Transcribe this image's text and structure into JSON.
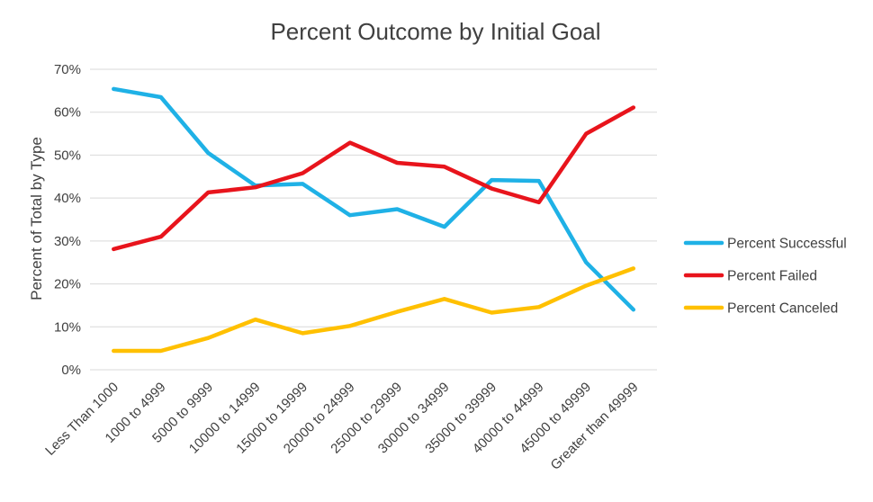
{
  "chart_data": {
    "type": "line",
    "title": "Percent Outcome by Initial Goal",
    "xlabel": "",
    "ylabel": "Percent of Total by Type",
    "ylim": [
      0,
      70
    ],
    "ytick_step": 10,
    "ytick_suffix": "%",
    "grid": true,
    "legend_position": "right",
    "categories": [
      "Less Than 1000",
      "1000 to 4999",
      "5000 to 9999",
      "10000 to 14999",
      "15000 to 19999",
      "20000 to 24999",
      "25000 to 29999",
      "30000 to 34999",
      "35000 to 39999",
      "40000 to 44999",
      "45000 to 49999",
      "Greater than 49999"
    ],
    "series": [
      {
        "name": "Percent Successful",
        "color": "#1fb1e6",
        "values": [
          65.4,
          63.5,
          50.5,
          42.9,
          43.3,
          36.0,
          37.4,
          33.3,
          44.2,
          44.0,
          25.0,
          14.0
        ]
      },
      {
        "name": "Percent Failed",
        "color": "#e8141c",
        "values": [
          28.1,
          31.0,
          41.3,
          42.5,
          45.8,
          52.9,
          48.2,
          47.3,
          42.2,
          39.0,
          55.0,
          61.1
        ]
      },
      {
        "name": "Percent Canceled",
        "color": "#ffc000",
        "values": [
          4.4,
          4.4,
          7.4,
          11.7,
          8.5,
          10.2,
          13.5,
          16.5,
          13.3,
          14.6,
          19.6,
          23.6
        ]
      }
    ]
  }
}
